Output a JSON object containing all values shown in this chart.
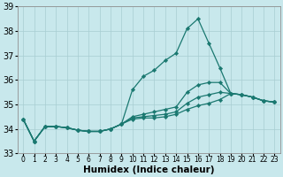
{
  "xlabel": "Humidex (Indice chaleur)",
  "background_color": "#c8e8ec",
  "grid_color": "#a8cdd2",
  "line_color": "#1a7870",
  "xlim": [
    -0.5,
    23.5
  ],
  "ylim": [
    33,
    39
  ],
  "yticks": [
    33,
    34,
    35,
    36,
    37,
    38,
    39
  ],
  "xticks": [
    0,
    1,
    2,
    3,
    4,
    5,
    6,
    7,
    8,
    9,
    10,
    11,
    12,
    13,
    14,
    15,
    16,
    17,
    18,
    19,
    20,
    21,
    22,
    23
  ],
  "series": [
    {
      "y": [
        34.4,
        33.5,
        34.1,
        34.1,
        34.05,
        33.95,
        33.9,
        33.9,
        34.0,
        34.2,
        35.6,
        36.15,
        36.4,
        36.8,
        37.1,
        38.1,
        38.5,
        37.5,
        36.5,
        35.45,
        35.4,
        35.3,
        35.15,
        35.1
      ],
      "marker": true
    },
    {
      "y": [
        34.4,
        33.5,
        34.1,
        34.1,
        34.05,
        33.95,
        33.9,
        33.9,
        34.0,
        34.2,
        34.5,
        34.6,
        34.7,
        34.8,
        34.9,
        35.5,
        35.8,
        35.9,
        35.9,
        35.45,
        35.4,
        35.3,
        35.15,
        35.1
      ],
      "marker": true
    },
    {
      "y": [
        34.4,
        33.5,
        34.1,
        34.1,
        34.05,
        33.95,
        33.9,
        33.9,
        34.0,
        34.2,
        34.45,
        34.5,
        34.55,
        34.6,
        34.7,
        35.05,
        35.3,
        35.4,
        35.5,
        35.45,
        35.4,
        35.3,
        35.15,
        35.1
      ],
      "marker": true
    },
    {
      "y": [
        34.4,
        33.5,
        34.1,
        34.1,
        34.05,
        33.95,
        33.9,
        33.9,
        34.0,
        34.2,
        34.4,
        34.45,
        34.45,
        34.5,
        34.6,
        34.8,
        34.95,
        35.05,
        35.2,
        35.45,
        35.4,
        35.3,
        35.15,
        35.1
      ],
      "marker": true
    }
  ],
  "marker_style": "D",
  "marker_size": 2.2,
  "line_width": 0.9,
  "xlabel_fontsize": 7.5,
  "ytick_fontsize": 7,
  "xtick_fontsize": 5.5
}
